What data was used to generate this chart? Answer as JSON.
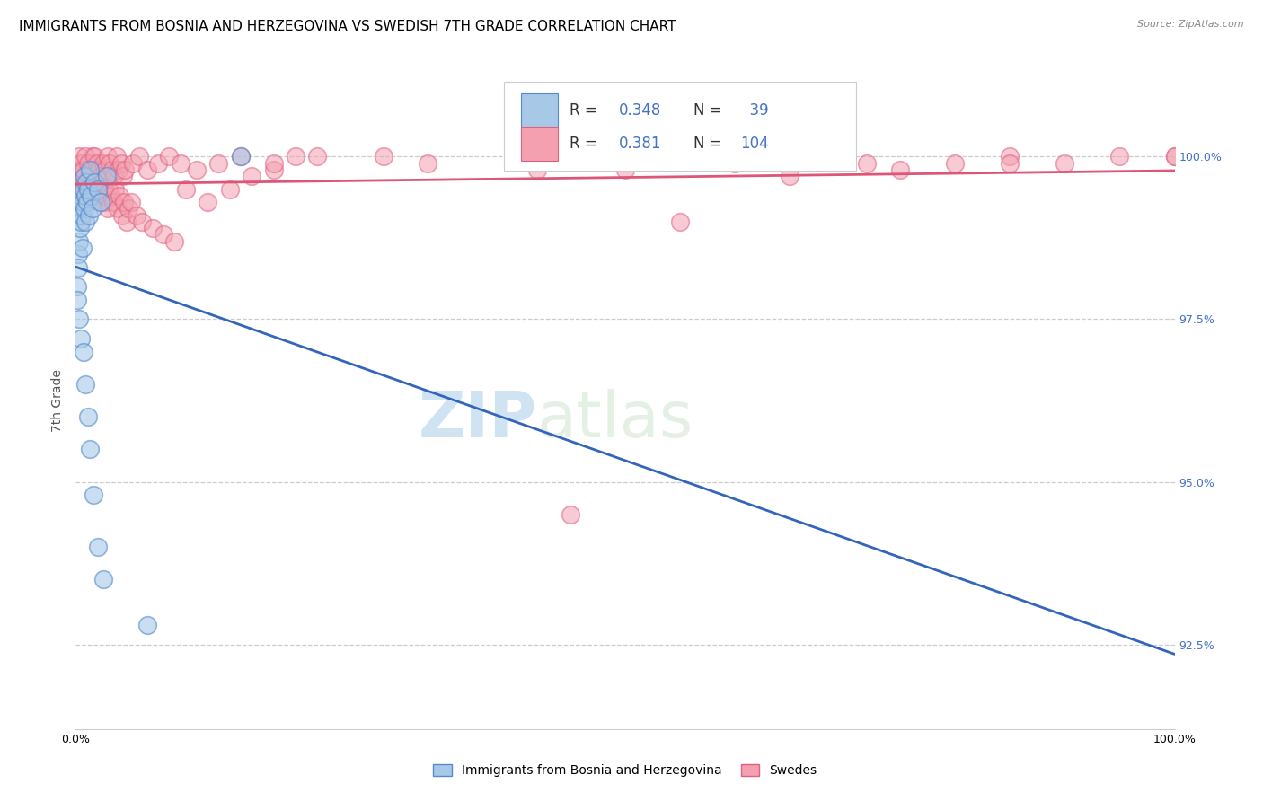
{
  "title": "IMMIGRANTS FROM BOSNIA AND HERZEGOVINA VS SWEDISH 7TH GRADE CORRELATION CHART",
  "source": "Source: ZipAtlas.com",
  "ylabel": "7th Grade",
  "xlim": [
    0.0,
    100.0
  ],
  "ylim": [
    91.2,
    101.3
  ],
  "yticks": [
    92.5,
    95.0,
    97.5,
    100.0
  ],
  "ytick_labels": [
    "92.5%",
    "95.0%",
    "97.5%",
    "100.0%"
  ],
  "blue_R": 0.348,
  "blue_N": 39,
  "pink_R": 0.381,
  "pink_N": 104,
  "blue_color": "#a8c8e8",
  "pink_color": "#f4a0b0",
  "blue_edge_color": "#5588cc",
  "pink_edge_color": "#e06080",
  "blue_line_color": "#3366bb",
  "pink_line_color": "#dd5577",
  "legend_label_blue": "Immigrants from Bosnia and Herzegovina",
  "legend_label_pink": "Swedes",
  "blue_x": [
    0.1,
    0.15,
    0.2,
    0.25,
    0.3,
    0.35,
    0.4,
    0.45,
    0.5,
    0.55,
    0.6,
    0.65,
    0.7,
    0.75,
    0.8,
    0.85,
    0.9,
    0.95,
    1.0,
    1.1,
    1.2,
    1.3,
    1.4,
    1.5,
    1.7,
    2.0,
    2.3,
    2.8,
    0.3,
    0.5,
    0.7,
    0.9,
    1.1,
    1.3,
    1.6,
    2.0,
    2.5,
    6.5,
    15.0
  ],
  "blue_y": [
    98.0,
    97.8,
    98.5,
    98.3,
    98.7,
    98.9,
    99.2,
    99.0,
    99.4,
    99.1,
    99.3,
    98.6,
    99.5,
    99.2,
    99.7,
    99.4,
    99.0,
    99.6,
    99.3,
    99.5,
    99.1,
    99.8,
    99.4,
    99.2,
    99.6,
    99.5,
    99.3,
    99.7,
    97.5,
    97.2,
    97.0,
    96.5,
    96.0,
    95.5,
    94.8,
    94.0,
    93.5,
    92.8,
    100.0
  ],
  "pink_x": [
    0.2,
    0.3,
    0.4,
    0.5,
    0.6,
    0.7,
    0.8,
    0.9,
    1.0,
    1.1,
    1.2,
    1.3,
    1.4,
    1.5,
    1.6,
    1.7,
    1.8,
    1.9,
    2.0,
    2.1,
    2.2,
    2.3,
    2.4,
    2.5,
    2.6,
    2.7,
    2.8,
    2.9,
    3.0,
    3.2,
    3.4,
    3.6,
    3.8,
    4.0,
    4.2,
    4.4,
    4.6,
    4.8,
    5.0,
    5.5,
    6.0,
    7.0,
    8.0,
    9.0,
    10.0,
    12.0,
    14.0,
    16.0,
    18.0,
    20.0,
    0.3,
    0.5,
    0.7,
    0.9,
    1.1,
    1.3,
    1.5,
    1.7,
    1.9,
    2.1,
    2.3,
    2.5,
    2.7,
    2.9,
    3.1,
    3.3,
    3.5,
    3.7,
    3.9,
    4.1,
    4.3,
    4.5,
    5.2,
    5.8,
    6.5,
    7.5,
    8.5,
    9.5,
    11.0,
    13.0,
    15.0,
    18.0,
    22.0,
    28.0,
    32.0,
    42.0,
    52.0,
    60.0,
    68.0,
    75.0,
    80.0,
    85.0,
    90.0,
    95.0,
    100.0,
    45.0,
    55.0,
    65.0,
    70.0,
    85.0,
    50.0,
    58.0,
    72.0,
    100.0
  ],
  "pink_y": [
    99.8,
    99.6,
    99.7,
    99.5,
    99.8,
    99.4,
    99.6,
    99.3,
    99.5,
    99.7,
    99.4,
    99.6,
    99.5,
    100.0,
    99.8,
    99.7,
    99.5,
    99.6,
    99.4,
    99.7,
    99.5,
    99.3,
    99.6,
    99.4,
    99.5,
    99.3,
    99.4,
    99.2,
    99.5,
    99.4,
    99.3,
    99.5,
    99.2,
    99.4,
    99.1,
    99.3,
    99.0,
    99.2,
    99.3,
    99.1,
    99.0,
    98.9,
    98.8,
    98.7,
    99.5,
    99.3,
    99.5,
    99.7,
    99.8,
    100.0,
    100.0,
    99.9,
    99.8,
    100.0,
    99.9,
    99.7,
    99.8,
    100.0,
    99.9,
    99.8,
    99.7,
    99.9,
    99.8,
    100.0,
    99.9,
    99.8,
    99.7,
    100.0,
    99.8,
    99.9,
    99.7,
    99.8,
    99.9,
    100.0,
    99.8,
    99.9,
    100.0,
    99.9,
    99.8,
    99.9,
    100.0,
    99.9,
    100.0,
    100.0,
    99.9,
    99.8,
    100.0,
    99.9,
    100.0,
    99.8,
    99.9,
    100.0,
    99.9,
    100.0,
    100.0,
    94.5,
    99.0,
    99.7,
    100.0,
    99.9,
    99.8,
    100.0,
    99.9,
    100.0
  ],
  "watermark_zip": "ZIP",
  "watermark_atlas": "atlas",
  "bg_color": "#ffffff",
  "grid_color": "#cccccc",
  "title_fontsize": 11,
  "tick_fontsize": 9,
  "right_tick_color": "#4472c4"
}
